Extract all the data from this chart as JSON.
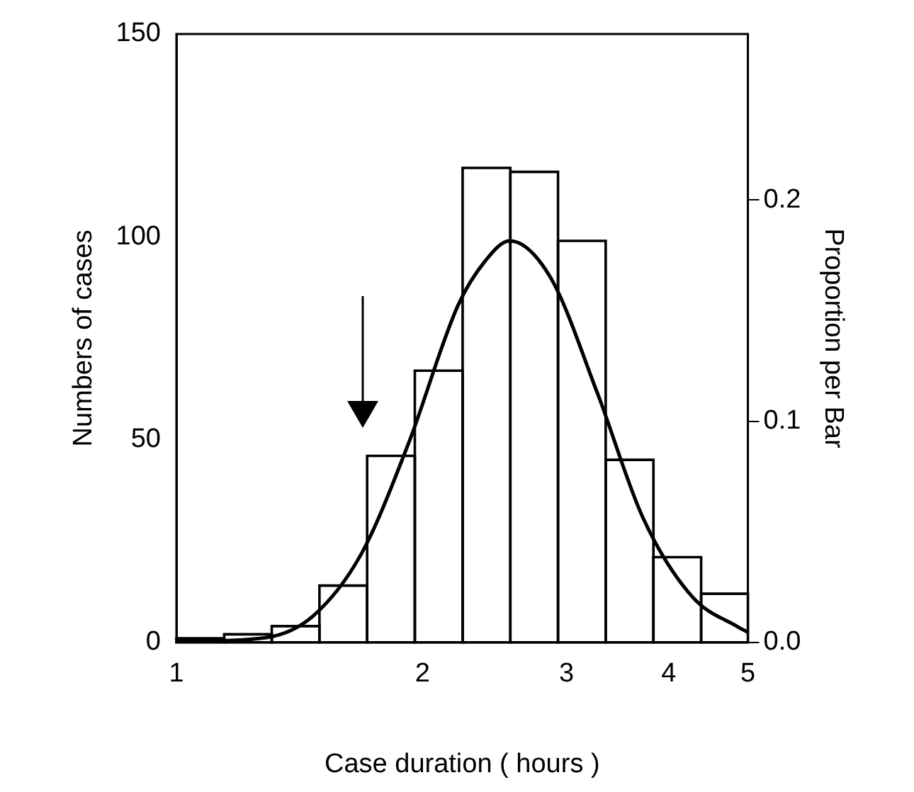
{
  "chart_data": {
    "type": "histogram",
    "xlabel": "Case duration ( hours )",
    "ylabel": "Numbers of cases",
    "y2label": "Proportion per Bar",
    "log": "x",
    "xlim": [
      1,
      5
    ],
    "xticks": [
      1,
      2,
      3,
      4,
      5
    ],
    "ylim": [
      0,
      150
    ],
    "yticks": [
      0,
      50,
      100,
      150
    ],
    "y2lim": [
      0,
      0.275
    ],
    "y2ticks": [
      {
        "value": 0,
        "label": "0.0"
      },
      {
        "value": 0.1,
        "label": "0.1"
      },
      {
        "value": 0.2,
        "label": "0.2"
      }
    ],
    "grid": false,
    "legend": false,
    "series": [
      {
        "color": "#000000",
        "bins": [
          1,
          1.144,
          1.308,
          1.496,
          1.711,
          1.957,
          2.239,
          2.561,
          2.929,
          3.35,
          3.832,
          4.383,
          5
        ],
        "values": [
          1,
          2,
          4,
          14,
          46,
          67,
          117,
          116,
          99,
          45,
          21,
          12
        ]
      },
      {
        "type": "line",
        "color": "#000000",
        "marker": "none",
        "x": [
          1,
          1.057,
          1.289,
          1.471,
          1.685,
          1.922,
          2.209,
          2.385,
          2.556,
          2.867,
          3.272,
          3.721,
          4.277,
          4.864,
          5
        ],
        "values": [
          0.2,
          0.3,
          1.2,
          6.6,
          22,
          49,
          83,
          94,
          99,
          90,
          61.5,
          30.7,
          11.2,
          3.8,
          2.5
        ]
      }
    ]
  }
}
